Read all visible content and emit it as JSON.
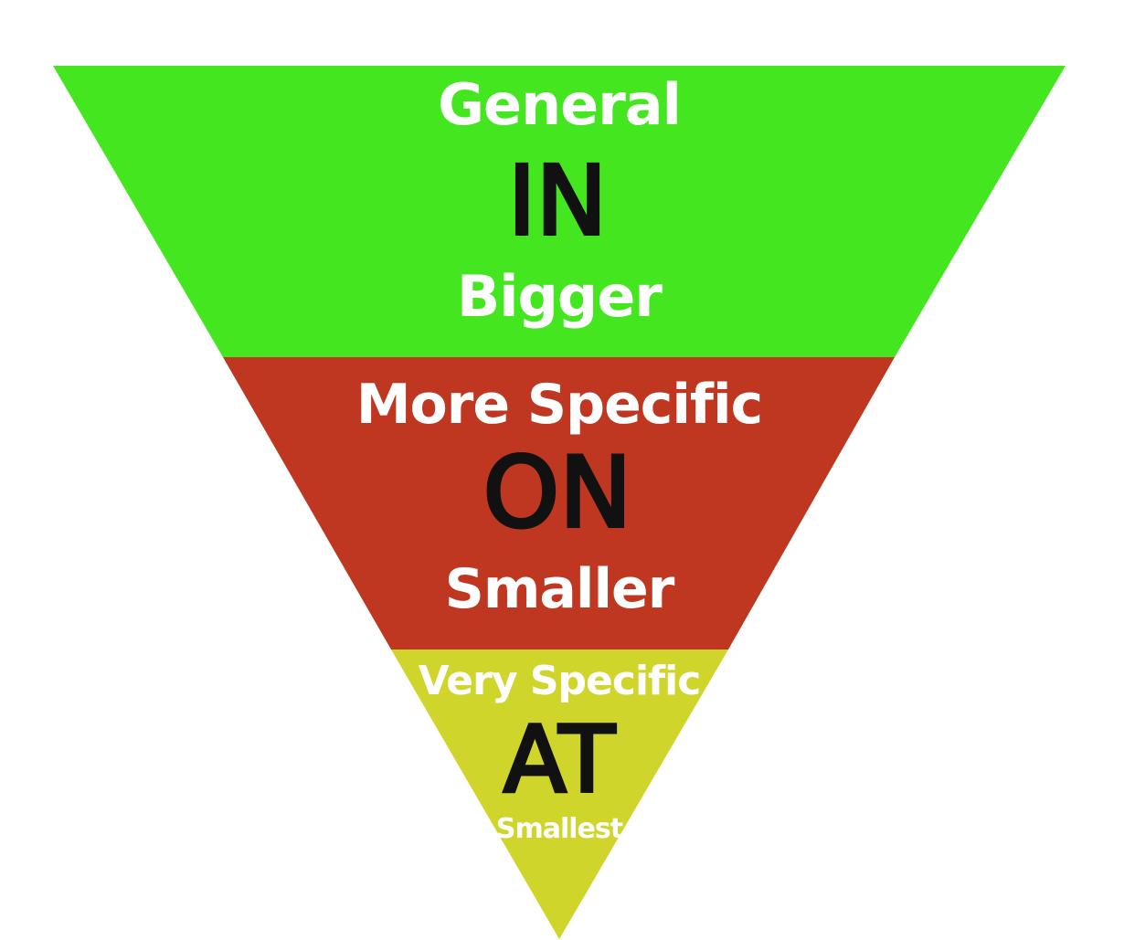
{
  "colors": {
    "background": "#ffffff",
    "tier1": "#44e61f",
    "tier2": "#bf3720",
    "tier3": "#cfd52a",
    "subtext": "#ffffff",
    "word": "#111111"
  },
  "tiers": [
    {
      "top": "General",
      "word": "IN",
      "bottom": "Bigger"
    },
    {
      "top": "More Specific",
      "word": "ON",
      "bottom": "Smaller"
    },
    {
      "top": "Very Specific",
      "word": "AT",
      "bottom": "Smallest"
    }
  ]
}
